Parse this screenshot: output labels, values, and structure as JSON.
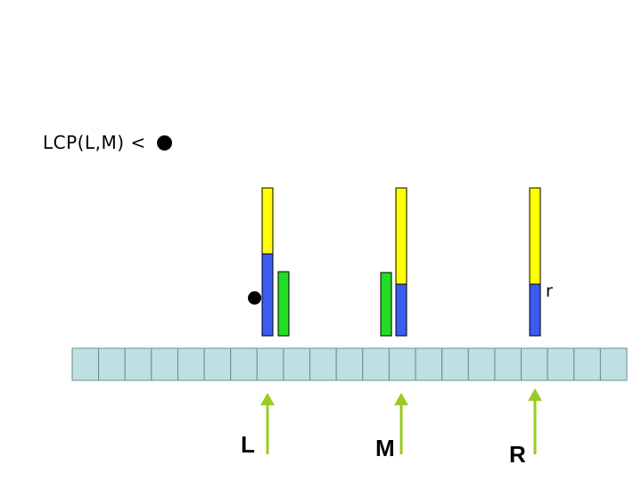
{
  "condition": {
    "text": "LCP(L,M) <"
  },
  "pointers": [
    {
      "name": "L",
      "label": "L"
    },
    {
      "name": "M",
      "label": "M"
    },
    {
      "name": "R",
      "label": "R"
    }
  ],
  "r_label": "r",
  "colors": {
    "yellow": "#ffff00",
    "blue": "#3a5cf0",
    "green": "#22dd22",
    "cell_fill": "#bfe0e3",
    "cell_stroke": "#6b8b8f",
    "arrow": "#99cc22"
  },
  "array": {
    "cell_count": 21
  }
}
